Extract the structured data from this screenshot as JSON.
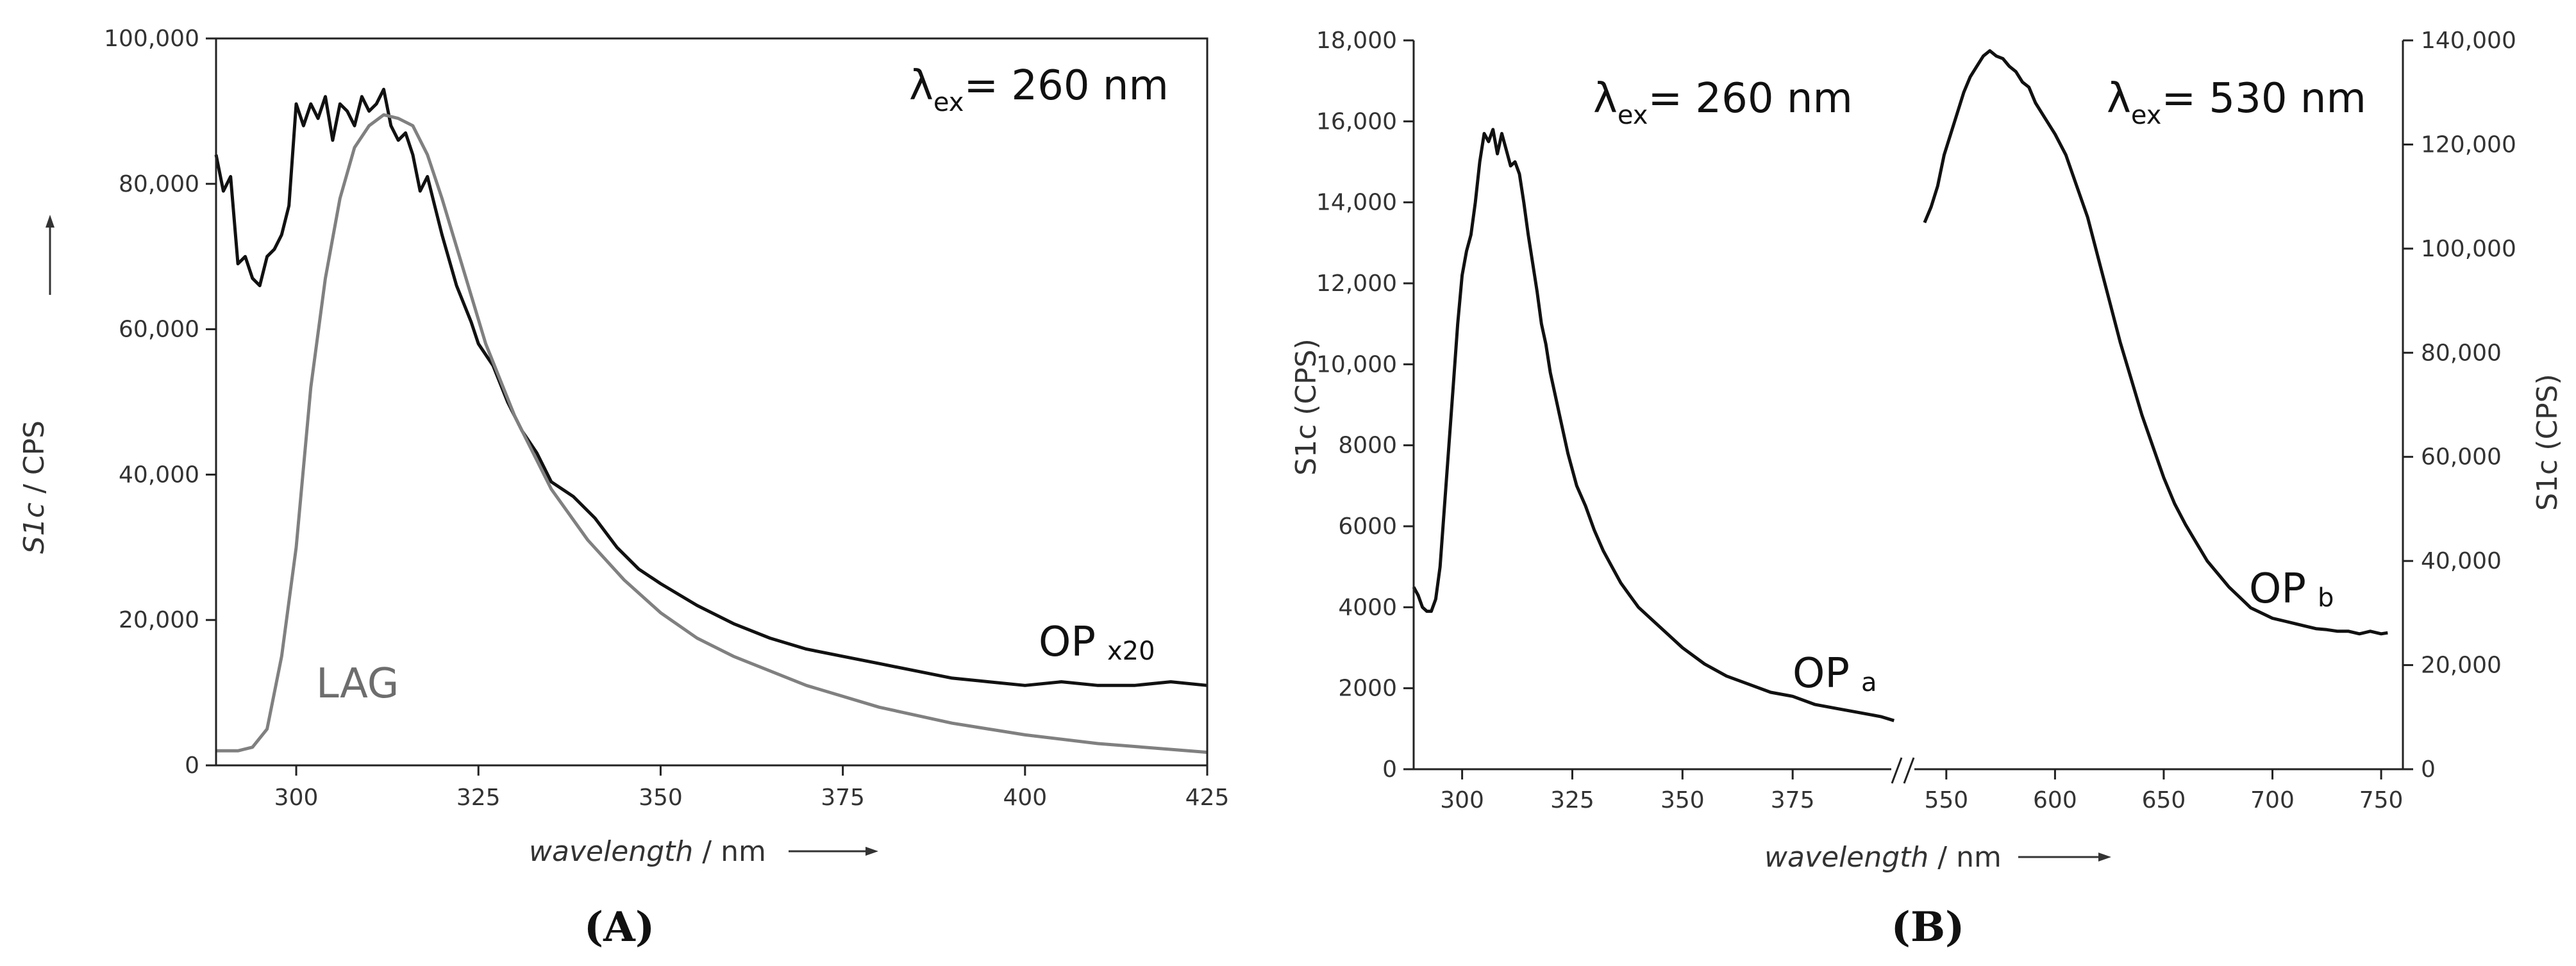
{
  "chart_data": [
    {
      "panel": "A",
      "type": "line",
      "xlabel": "wavelength",
      "xlabel_unit": " / nm",
      "ylabel": "S1c",
      "ylabel_unit": " / CPS",
      "xlim": [
        289,
        425
      ],
      "ylim": [
        0,
        100000
      ],
      "xticks": [
        300,
        325,
        350,
        375,
        400,
        425
      ],
      "yticks": [
        0,
        20000,
        40000,
        60000,
        80000,
        100000
      ],
      "ytick_labels": [
        "0",
        "20,000",
        "40,000",
        "60,000",
        "80,000",
        "100,000"
      ],
      "annotation": {
        "lambda": "λ",
        "sub": "ex",
        "text": "= 260 nm"
      },
      "series": [
        {
          "name": "OP",
          "label_sub": "x20",
          "color": "#111111",
          "x": [
            289,
            290,
            291,
            292,
            293,
            294,
            295,
            296,
            297,
            298,
            299,
            300,
            301,
            302,
            303,
            304,
            305,
            306,
            307,
            308,
            309,
            310,
            311,
            312,
            313,
            314,
            315,
            316,
            317,
            318,
            319,
            320,
            322,
            324,
            325,
            327,
            329,
            331,
            333,
            335,
            338,
            341,
            344,
            347,
            350,
            355,
            360,
            365,
            370,
            375,
            380,
            385,
            390,
            395,
            400,
            405,
            410,
            415,
            420,
            425
          ],
          "y": [
            84000,
            79000,
            81000,
            69000,
            70000,
            67000,
            66000,
            70000,
            71000,
            73000,
            77000,
            91000,
            88000,
            91000,
            89000,
            92000,
            86000,
            91000,
            90000,
            88000,
            92000,
            90000,
            91000,
            93000,
            88000,
            86000,
            87000,
            84000,
            79000,
            81000,
            77000,
            73000,
            66000,
            61000,
            58000,
            55000,
            50000,
            46000,
            43000,
            39000,
            37000,
            34000,
            30000,
            27000,
            25000,
            22000,
            19500,
            17500,
            16000,
            15000,
            14000,
            13000,
            12000,
            11500,
            11000,
            11500,
            11000,
            11000,
            11500,
            11000
          ]
        },
        {
          "name": "LAG",
          "color": "#808080",
          "x": [
            289,
            292,
            294,
            296,
            298,
            300,
            302,
            304,
            306,
            308,
            310,
            312,
            314,
            316,
            318,
            320,
            323,
            326,
            330,
            335,
            340,
            345,
            350,
            355,
            360,
            370,
            380,
            390,
            400,
            410,
            425
          ],
          "y": [
            2000,
            2000,
            2500,
            5000,
            15000,
            30000,
            52000,
            67000,
            78000,
            85000,
            88000,
            89500,
            89000,
            88000,
            84000,
            78000,
            68000,
            58000,
            48000,
            38000,
            31000,
            25500,
            21000,
            17500,
            15000,
            11000,
            8000,
            5800,
            4200,
            3000,
            1800
          ]
        }
      ]
    },
    {
      "panel": "B",
      "type": "line",
      "xlabel": "wavelength",
      "xlabel_unit": " / nm",
      "ylabel_left": "S1c (CPS)",
      "ylabel_right": "S1c (CPS)",
      "segment_left": {
        "xlim": [
          289,
          400
        ],
        "xticks": [
          300,
          325,
          350,
          375
        ],
        "ylim": [
          0,
          18000
        ],
        "yticks": [
          0,
          2000,
          4000,
          6000,
          8000,
          10000,
          12000,
          14000,
          16000,
          18000
        ],
        "ytick_labels": [
          "0",
          "2000",
          "4000",
          "6000",
          "8000",
          "10,000",
          "12,000",
          "14,000",
          "16,000",
          "18,000"
        ],
        "annotation": {
          "lambda": "λ",
          "sub": "ex",
          "text": "= 260 nm"
        },
        "series": {
          "name": "OP",
          "label_sub": "a",
          "color": "#111111",
          "x": [
            289,
            290,
            291,
            292,
            293,
            294,
            295,
            296,
            297,
            298,
            299,
            300,
            301,
            302,
            303,
            304,
            305,
            306,
            307,
            308,
            309,
            310,
            311,
            312,
            313,
            314,
            315,
            316,
            317,
            318,
            319,
            320,
            322,
            324,
            326,
            328,
            330,
            332,
            334,
            336,
            338,
            340,
            343,
            346,
            350,
            355,
            360,
            365,
            370,
            375,
            380,
            385,
            390,
            395,
            398
          ],
          "y": [
            4500,
            4300,
            4000,
            3900,
            3900,
            4200,
            5000,
            6500,
            8000,
            9500,
            11000,
            12200,
            12800,
            13200,
            14000,
            15000,
            15700,
            15500,
            15800,
            15200,
            15700,
            15300,
            14900,
            15000,
            14700,
            14000,
            13200,
            12500,
            11800,
            11000,
            10500,
            9800,
            8800,
            7800,
            7000,
            6500,
            5900,
            5400,
            5000,
            4600,
            4300,
            4000,
            3700,
            3400,
            3000,
            2600,
            2300,
            2100,
            1900,
            1800,
            1600,
            1500,
            1400,
            1300,
            1200
          ]
        }
      },
      "segment_right": {
        "xlim": [
          530,
          760
        ],
        "xticks": [
          550,
          600,
          650,
          700,
          750
        ],
        "xtick_labels": [
          "550",
          "600",
          "650",
          "700",
          "750"
        ],
        "ylim": [
          0,
          140000
        ],
        "yticks": [
          0,
          20000,
          40000,
          60000,
          80000,
          100000,
          120000,
          140000
        ],
        "ytick_labels": [
          "0",
          "20,000",
          "40,000",
          "60,000",
          "80,000",
          "100,000",
          "120,000",
          "140,000"
        ],
        "annotation": {
          "lambda": "λ",
          "sub": "ex",
          "text": "= 530 nm"
        },
        "series": {
          "name": "OP",
          "label_sub": "b",
          "color": "#111111",
          "x": [
            540,
            543,
            546,
            549,
            552,
            555,
            558,
            561,
            564,
            567,
            570,
            573,
            576,
            579,
            582,
            585,
            588,
            591,
            594,
            597,
            600,
            605,
            610,
            615,
            620,
            625,
            630,
            635,
            640,
            645,
            650,
            655,
            660,
            665,
            670,
            675,
            680,
            685,
            690,
            695,
            700,
            705,
            710,
            715,
            720,
            725,
            730,
            735,
            740,
            745,
            750,
            753
          ],
          "y": [
            105000,
            108000,
            112000,
            118000,
            122000,
            126000,
            130000,
            133000,
            135000,
            137000,
            138000,
            137000,
            136500,
            135000,
            134000,
            132000,
            131000,
            128000,
            126000,
            124000,
            122000,
            118000,
            112000,
            106000,
            98000,
            90000,
            82000,
            75000,
            68000,
            62000,
            56000,
            51000,
            47000,
            43500,
            40000,
            37500,
            35000,
            33000,
            31000,
            30000,
            29000,
            28500,
            28000,
            27500,
            27000,
            26800,
            26500,
            26500,
            26000,
            26500,
            26000,
            26200
          ]
        }
      },
      "axis_break": "//"
    }
  ],
  "panel_labels": {
    "a": "(A)",
    "b": "(B)"
  },
  "labels": {
    "a_series_op": "OP",
    "a_series_op_sub": "x20",
    "a_series_lag": "LAG",
    "b_series_a": "OP",
    "b_series_a_sub": "a",
    "b_series_b": "OP",
    "b_series_b_sub": "b"
  }
}
